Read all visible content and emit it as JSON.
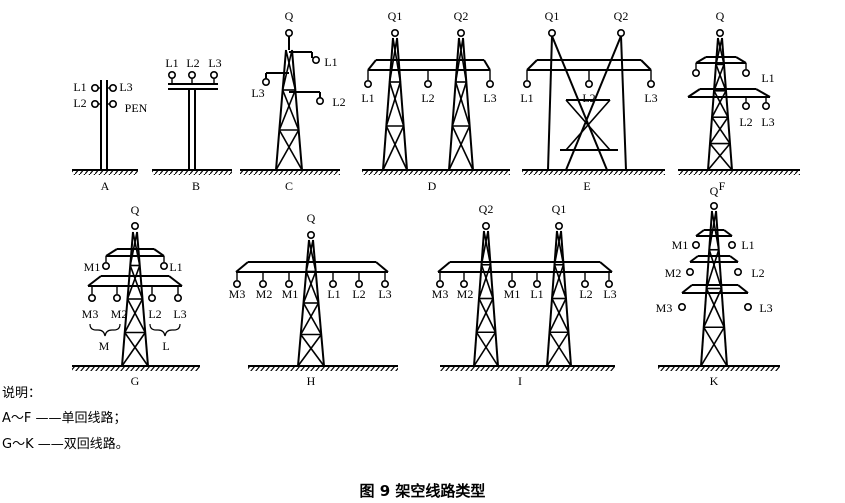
{
  "figure_title": "图 9   架空线路类型",
  "notes": {
    "heading": "说明：",
    "line1": "A～F ——单回线路；",
    "line2": "G～K ——双回线路。"
  },
  "panels": [
    {
      "id": "A",
      "caption": "A",
      "labels": [
        "L1",
        "L3",
        "L2",
        "PEN"
      ]
    },
    {
      "id": "B",
      "caption": "B",
      "labels": [
        "L1",
        "L2",
        "L3"
      ]
    },
    {
      "id": "C",
      "caption": "C",
      "labels": [
        "Q",
        "L1",
        "L3",
        "L2"
      ]
    },
    {
      "id": "D",
      "caption": "D",
      "labels": [
        "Q1",
        "Q2",
        "L1",
        "L2",
        "L3"
      ]
    },
    {
      "id": "E",
      "caption": "E",
      "labels": [
        "Q1",
        "Q2",
        "L1",
        "L2",
        "L3"
      ]
    },
    {
      "id": "F",
      "caption": "F",
      "labels": [
        "Q",
        "L1",
        "L2",
        "L3"
      ]
    },
    {
      "id": "G",
      "caption": "G",
      "labels": [
        "Q",
        "M1",
        "L1",
        "M3",
        "M2",
        "L2",
        "L3",
        "M",
        "L"
      ]
    },
    {
      "id": "H",
      "caption": "H",
      "labels": [
        "Q",
        "M3",
        "M2",
        "M1",
        "L1",
        "L2",
        "L3"
      ]
    },
    {
      "id": "I",
      "caption": "I",
      "labels": [
        "Q2",
        "Q1",
        "M3",
        "M2",
        "M1",
        "L1",
        "L2",
        "L3"
      ]
    },
    {
      "id": "K",
      "caption": "K",
      "labels": [
        "Q",
        "M1",
        "L1",
        "M2",
        "L2",
        "M3",
        "L3"
      ]
    }
  ]
}
